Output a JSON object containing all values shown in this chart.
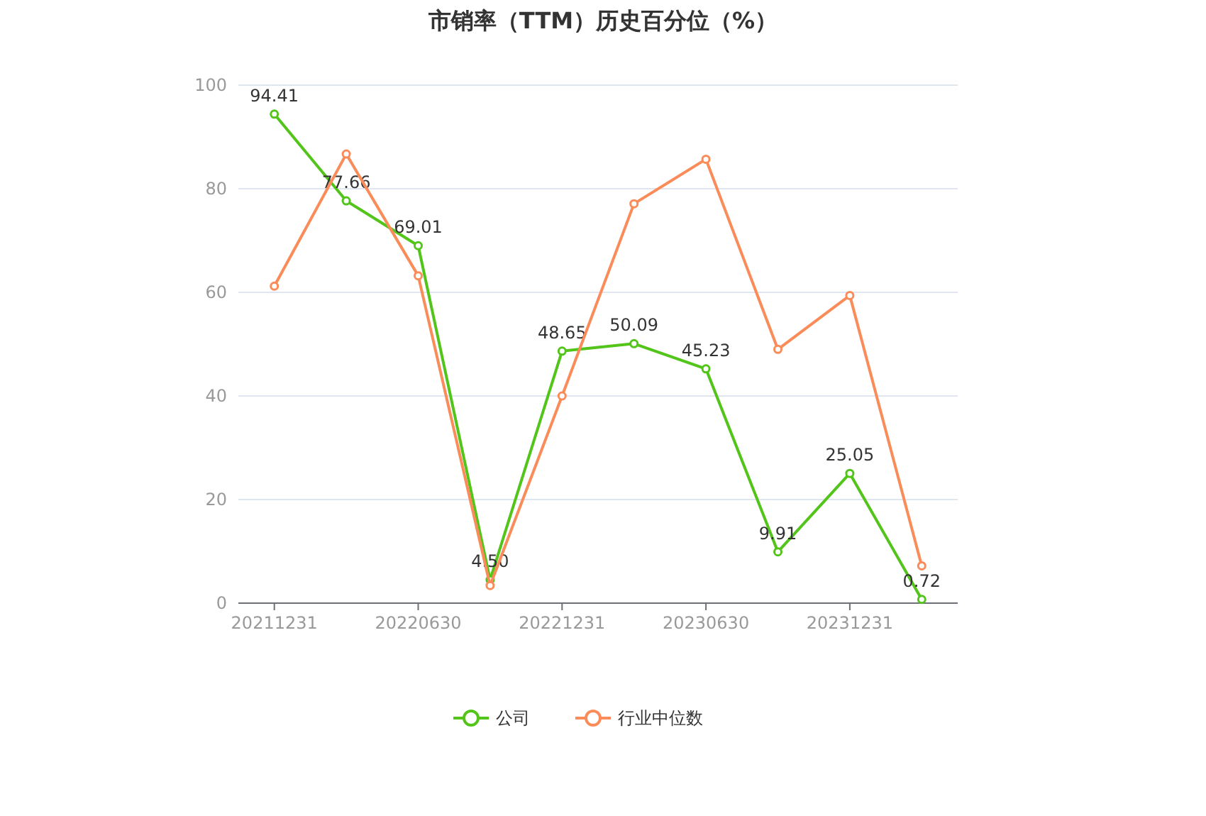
{
  "chart_data": {
    "type": "line",
    "title": "市销率（TTM）历史百分位（%）",
    "categories": [
      "20211231",
      null,
      "20220630",
      null,
      "20221231",
      null,
      "20230630",
      null,
      "20231231",
      null
    ],
    "series": [
      {
        "name": "公司",
        "color": "#52c41a",
        "values": [
          94.41,
          77.66,
          69.01,
          4.5,
          48.65,
          50.09,
          45.23,
          9.91,
          25.05,
          0.72
        ],
        "value_labels": [
          "94.41",
          "77.66",
          "69.01",
          "4.50",
          "48.65",
          "50.09",
          "45.23",
          "9.91",
          "25.05",
          "0.72"
        ]
      },
      {
        "name": "行业中位数",
        "color": "#fa8c5a",
        "values": [
          61.2,
          86.7,
          63.2,
          3.4,
          40.0,
          77.1,
          85.7,
          49.0,
          59.4,
          7.2
        ]
      }
    ],
    "ylim": [
      0,
      100
    ],
    "yticks": [
      0,
      20,
      40,
      60,
      80,
      100
    ],
    "grid": "y",
    "legend": "bottom",
    "marker": "circle",
    "line_style": "solid"
  }
}
